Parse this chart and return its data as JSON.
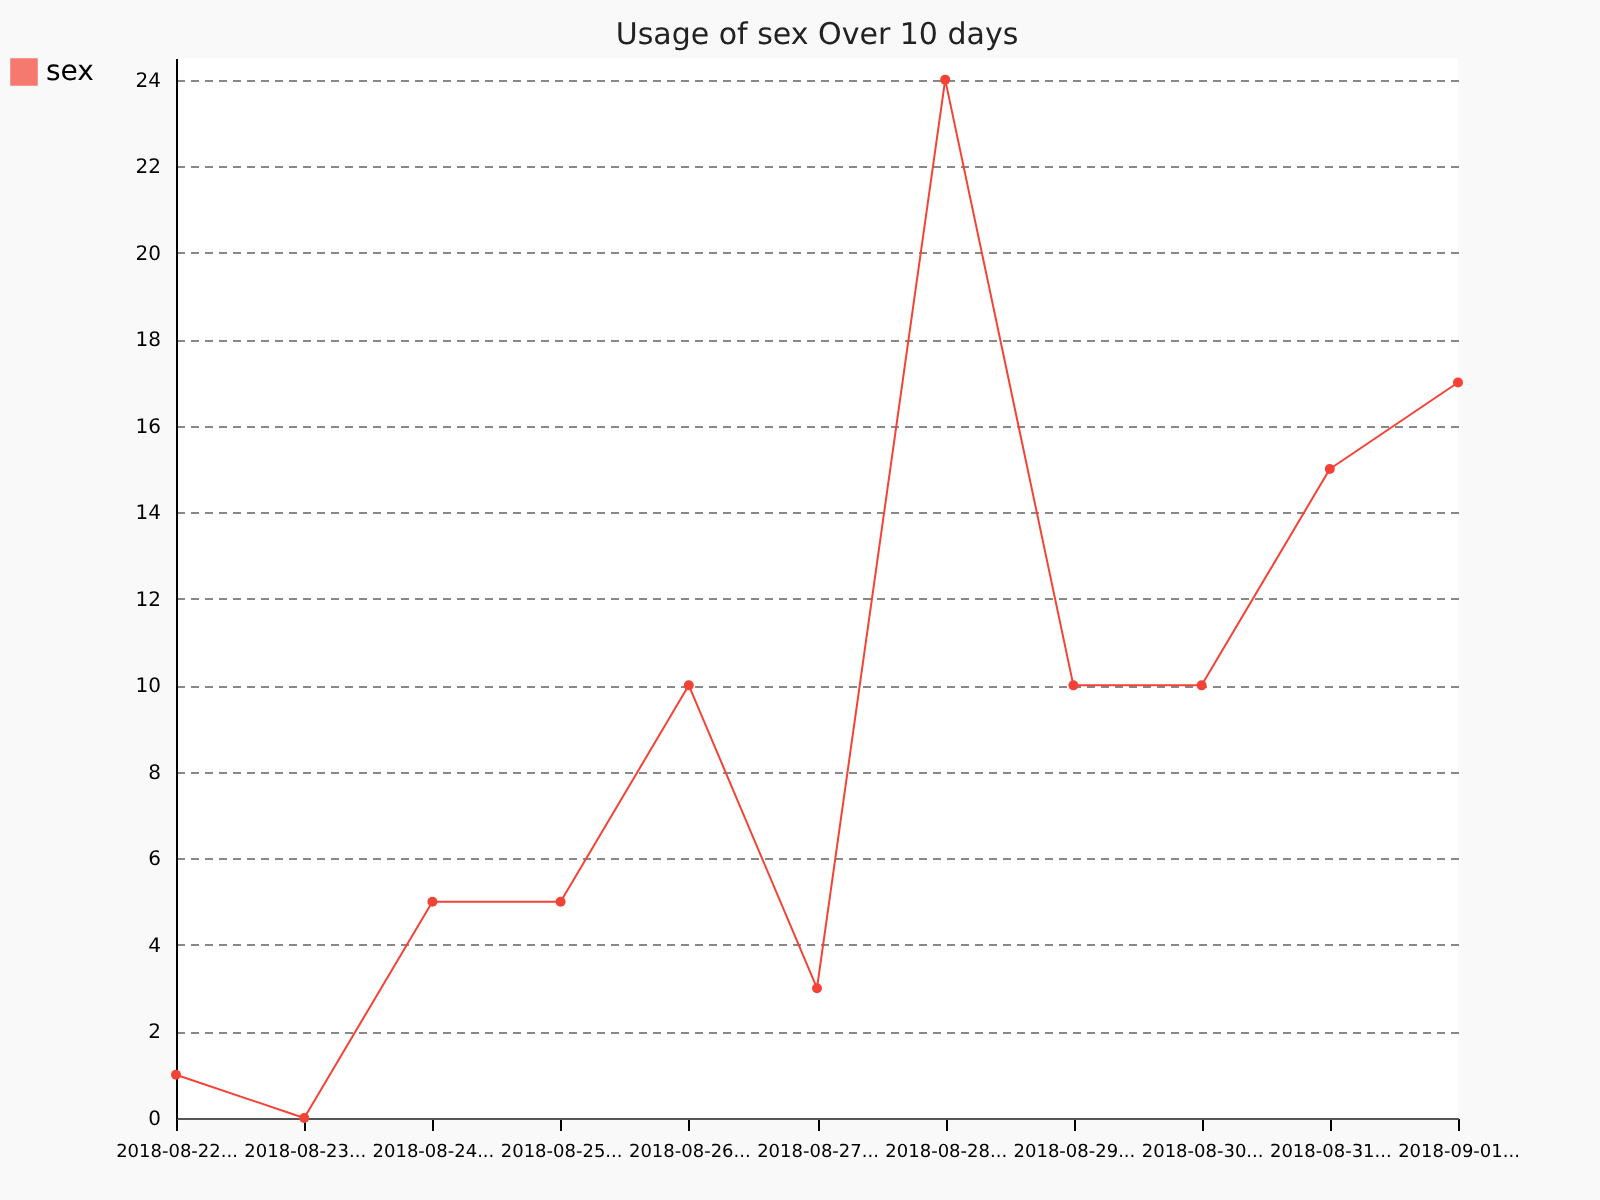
{
  "chart_data": {
    "type": "line",
    "title": "Usage of sex Over 10 days",
    "categories": [
      "2018-08-22...",
      "2018-08-23...",
      "2018-08-24...",
      "2018-08-25...",
      "2018-08-26...",
      "2018-08-27...",
      "2018-08-28...",
      "2018-08-29...",
      "2018-08-30...",
      "2018-08-31...",
      "2018-09-01..."
    ],
    "series": [
      {
        "name": "sex",
        "color": "#f44336",
        "values": [
          1,
          0,
          5,
          5,
          10,
          3,
          24,
          10,
          10,
          15,
          17
        ]
      }
    ],
    "ylim": [
      0,
      24.5
    ],
    "yticks": [
      0,
      2,
      4,
      6,
      8,
      10,
      12,
      14,
      16,
      18,
      20,
      22,
      24
    ],
    "grid": "y",
    "legend": "top left",
    "marker": "circle",
    "line_style": "solid"
  }
}
